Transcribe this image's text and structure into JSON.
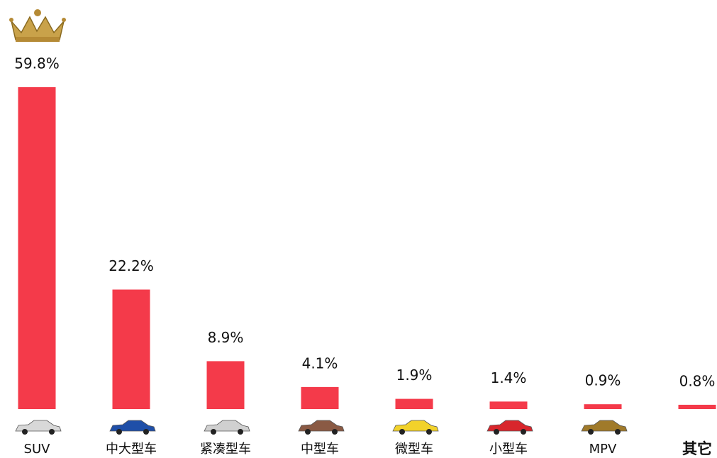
{
  "chart_data": {
    "type": "bar",
    "categories": [
      "SUV",
      "中大型车",
      "紧凑型车",
      "中型车",
      "微型车",
      "小型车",
      "MPV",
      "其它"
    ],
    "values": [
      59.8,
      22.2,
      8.9,
      4.1,
      1.9,
      1.4,
      0.9,
      0.8
    ],
    "value_labels": [
      "59.8%",
      "22.2%",
      "8.9%",
      "4.1%",
      "1.9%",
      "1.4%",
      "0.9%",
      "0.8%"
    ],
    "color": "#f43a4a"
  }
}
